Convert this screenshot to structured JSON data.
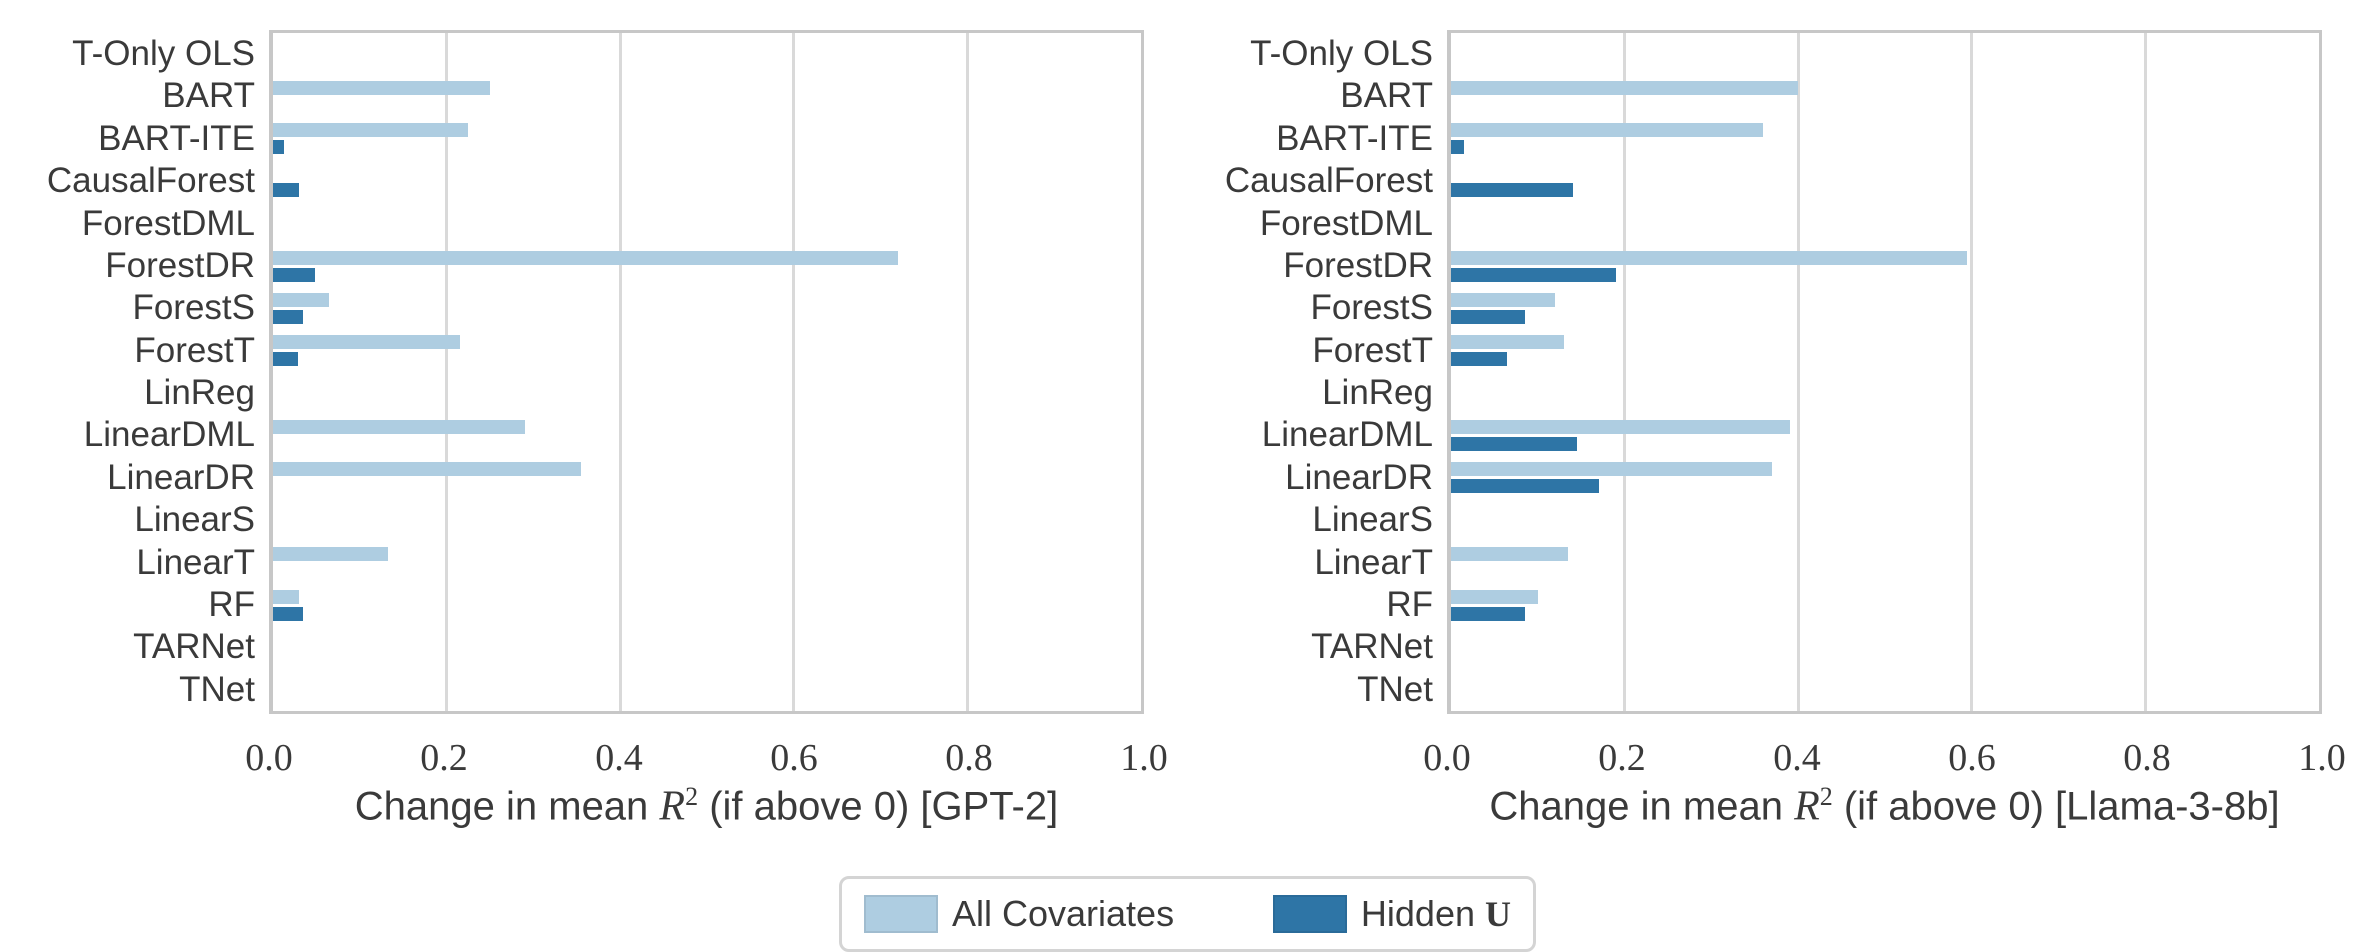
{
  "figure": {
    "legend": {
      "items": [
        {
          "label": "All Covariates",
          "color": "#aecde1"
        },
        {
          "label_prefix": "Hidden ",
          "label_bold": "U",
          "color": "#2e75a6"
        }
      ]
    }
  },
  "chart_data": [
    {
      "type": "bar",
      "orientation": "horizontal",
      "panel": "GPT-2",
      "title_prefix": "Change in mean ",
      "title_math": "R",
      "title_sup": "2",
      "title_suffix": " (if above 0) [GPT-2]",
      "categories": [
        "T-Only OLS",
        "BART",
        "BART-ITE",
        "CausalForest",
        "ForestDML",
        "ForestDR",
        "ForestS",
        "ForestT",
        "LinReg",
        "LinearDML",
        "LinearDR",
        "LinearS",
        "LinearT",
        "RF",
        "TARNet",
        "TNet"
      ],
      "xticks": [
        "0.0",
        "0.2",
        "0.4",
        "0.6",
        "0.8",
        "1.0"
      ],
      "xlim": [
        0,
        1
      ],
      "grid": "vertical",
      "legend_position": "bottom-center",
      "series": [
        {
          "name": "All Covariates",
          "color": "#aecde1",
          "values": [
            0,
            0.25,
            0.225,
            0,
            0,
            0.72,
            0.065,
            0.215,
            0,
            0.29,
            0.355,
            0,
            0.133,
            0.03,
            0,
            0
          ]
        },
        {
          "name": "Hidden U",
          "color": "#2e75a6",
          "values": [
            0,
            0,
            0.013,
            0.03,
            0,
            0.048,
            0.035,
            0.029,
            0,
            0,
            0,
            0,
            0,
            0.035,
            0,
            0
          ]
        }
      ]
    },
    {
      "type": "bar",
      "orientation": "horizontal",
      "panel": "Llama-3-8b",
      "title_prefix": "Change in mean ",
      "title_math": "R",
      "title_sup": "2",
      "title_suffix": " (if above 0) [Llama-3-8b]",
      "categories": [
        "T-Only OLS",
        "BART",
        "BART-ITE",
        "CausalForest",
        "ForestDML",
        "ForestDR",
        "ForestS",
        "ForestT",
        "LinReg",
        "LinearDML",
        "LinearDR",
        "LinearS",
        "LinearT",
        "RF",
        "TARNet",
        "TNet"
      ],
      "xticks": [
        "0.0",
        "0.2",
        "0.4",
        "0.6",
        "0.8",
        "1.0"
      ],
      "xlim": [
        0,
        1
      ],
      "grid": "vertical",
      "legend_position": "bottom-center",
      "series": [
        {
          "name": "All Covariates",
          "color": "#aecde1",
          "values": [
            0,
            0.4,
            0.36,
            0,
            0,
            0.595,
            0.12,
            0.13,
            0,
            0.39,
            0.37,
            0,
            0.135,
            0.1,
            0,
            0
          ]
        },
        {
          "name": "Hidden U",
          "color": "#2e75a6",
          "values": [
            0,
            0,
            0.015,
            0.14,
            0,
            0.19,
            0.085,
            0.065,
            0,
            0.145,
            0.17,
            0,
            0,
            0.085,
            0,
            0
          ]
        }
      ]
    }
  ]
}
